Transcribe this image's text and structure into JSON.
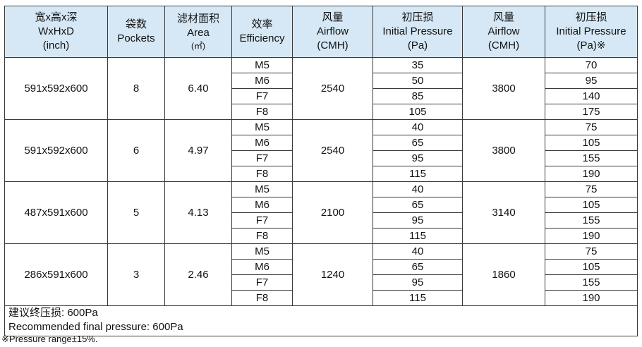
{
  "header": {
    "size": {
      "zh": "宽x高x深",
      "en": "WxHxD",
      "unit": "(inch)"
    },
    "pockets": {
      "zh": "袋数",
      "en": "Pockets"
    },
    "area": {
      "zh": "滤材面积",
      "en": "Area",
      "unit": "(㎡)"
    },
    "efficiency": {
      "zh": "效率",
      "en": "Efficiency"
    },
    "airflow1": {
      "zh": "风量",
      "en": "Airflow",
      "unit": "(CMH)"
    },
    "pressure1": {
      "zh": "初压损",
      "en": "Initial  Pressure",
      "unit": "(Pa)"
    },
    "airflow2": {
      "zh": "风量",
      "en": "Airflow",
      "unit": "(CMH)"
    },
    "pressure2": {
      "zh": "初压损",
      "en": "Initial  Pressure",
      "unit": "(Pa)※"
    }
  },
  "groups": [
    {
      "size": "591x592x600",
      "pockets": "8",
      "area": "6.40",
      "airflow1": "2540",
      "airflow2": "3800",
      "rows": [
        {
          "eff": "M5",
          "p1": "35",
          "p2": "70"
        },
        {
          "eff": "M6",
          "p1": "50",
          "p2": "95"
        },
        {
          "eff": "F7",
          "p1": "85",
          "p2": "140"
        },
        {
          "eff": "F8",
          "p1": "105",
          "p2": "175"
        }
      ]
    },
    {
      "size": "591x592x600",
      "pockets": "6",
      "area": "4.97",
      "airflow1": "2540",
      "airflow2": "3800",
      "rows": [
        {
          "eff": "M5",
          "p1": "40",
          "p2": "75"
        },
        {
          "eff": "M6",
          "p1": "65",
          "p2": "105"
        },
        {
          "eff": "F7",
          "p1": "95",
          "p2": "155"
        },
        {
          "eff": "F8",
          "p1": "115",
          "p2": "190"
        }
      ]
    },
    {
      "size": "487x591x600",
      "pockets": "5",
      "area": "4.13",
      "airflow1": "2100",
      "airflow2": "3140",
      "rows": [
        {
          "eff": "M5",
          "p1": "40",
          "p2": "75"
        },
        {
          "eff": "M6",
          "p1": "65",
          "p2": "105"
        },
        {
          "eff": "F7",
          "p1": "95",
          "p2": "155"
        },
        {
          "eff": "F8",
          "p1": "115",
          "p2": "190"
        }
      ]
    },
    {
      "size": "286x591x600",
      "pockets": "3",
      "area": "2.46",
      "airflow1": "1240",
      "airflow2": "1860",
      "rows": [
        {
          "eff": "M5",
          "p1": "40",
          "p2": "75"
        },
        {
          "eff": "M6",
          "p1": "65",
          "p2": "105"
        },
        {
          "eff": "F7",
          "p1": "95",
          "p2": "155"
        },
        {
          "eff": "F8",
          "p1": "115",
          "p2": "190"
        }
      ]
    }
  ],
  "footer": {
    "zh": "建议终压损: 600Pa",
    "en": "Recommended final pressure: 600Pa"
  },
  "footnote": "※Pressure  range±15%."
}
